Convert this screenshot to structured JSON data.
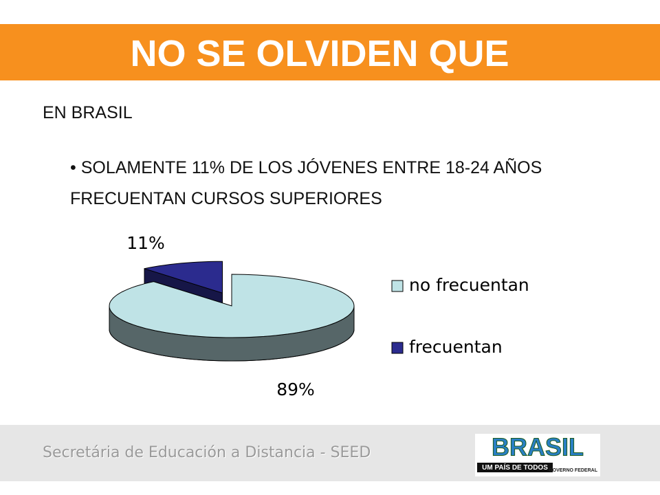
{
  "header": {
    "title": "NO SE OLVIDEN QUE"
  },
  "body": {
    "heading": "EN BRASIL",
    "bullet": "SOLAMENTE 11% DE LOS JÓVENES ENTRE 18-24 AÑOS FRECUENTAN CURSOS SUPERIORES"
  },
  "chart_data": {
    "type": "pie",
    "categories": [
      "no frecuentan",
      "frecuentan"
    ],
    "values": [
      89,
      11
    ],
    "value_labels": [
      "89%",
      "11%"
    ],
    "colors": [
      "#bfe3e6",
      "#2b2b8e"
    ],
    "exploded": [
      false,
      true
    ],
    "legend": "right"
  },
  "footer": {
    "text": "Secretária de Educación a Distancia - SEED",
    "logo": {
      "title": "BRASIL",
      "subtitle": "UM PAÍS DE TODOS",
      "caption": "GOVERNO FEDERAL"
    }
  }
}
